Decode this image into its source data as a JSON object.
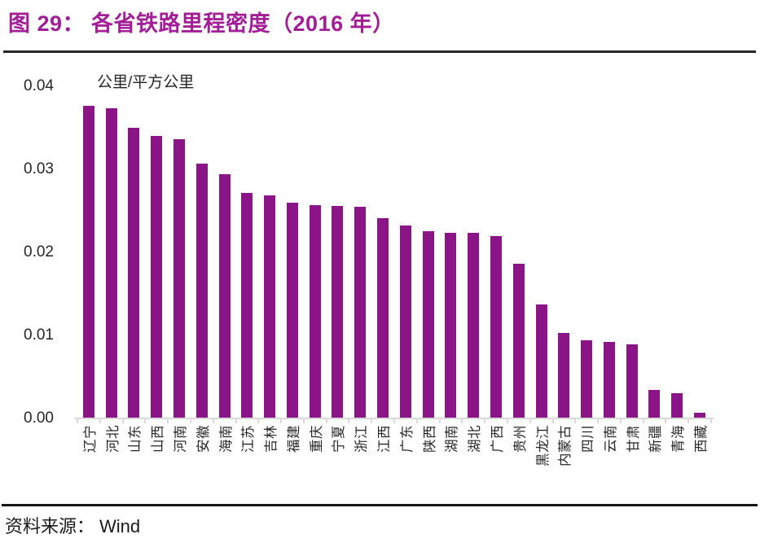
{
  "figure": {
    "title": "图 29： 各省铁路里程密度（2016 年）",
    "title_color": "#A21E96",
    "source_label": "资料来源：",
    "source_value": "Wind"
  },
  "chart_data": {
    "type": "bar",
    "title": "各省铁路里程密度（2016 年）",
    "unit_label": "公里/平方公里",
    "categories": [
      "辽宁",
      "河北",
      "山东",
      "山西",
      "河南",
      "安徽",
      "海南",
      "江苏",
      "吉林",
      "福建",
      "重庆",
      "宁夏",
      "浙江",
      "江西",
      "广东",
      "陕西",
      "湖南",
      "湖北",
      "广西",
      "贵州",
      "黑龙江",
      "内蒙古",
      "四川",
      "云南",
      "甘肃",
      "新疆",
      "青海",
      "西藏"
    ],
    "values": [
      0.0377,
      0.0374,
      0.035,
      0.034,
      0.0336,
      0.0307,
      0.0294,
      0.0272,
      0.0269,
      0.026,
      0.0257,
      0.0256,
      0.0255,
      0.0241,
      0.0232,
      0.0226,
      0.0224,
      0.0224,
      0.022,
      0.0186,
      0.0137,
      0.0103,
      0.0094,
      0.0092,
      0.0089,
      0.0034,
      0.003,
      0.0007
    ],
    "xlabel": "",
    "ylabel": "公里/平方公里",
    "ylim": [
      0,
      0.04
    ],
    "ytick_labels": [
      "0.04",
      "0.03",
      "0.02",
      "0.01",
      "0.00"
    ],
    "grid": false,
    "legend": "none",
    "bar_color": "#8B1586",
    "axis_color": "#D9D9D9"
  }
}
